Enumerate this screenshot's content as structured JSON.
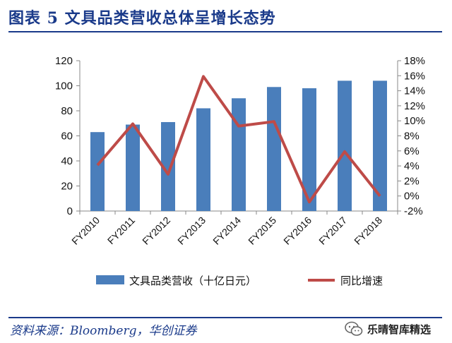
{
  "header": {
    "title": "图表 5  文具品类营收总体呈增长态势"
  },
  "footer": {
    "source": "资料来源：Bloomberg，华创证券",
    "watermark": "乐晴智库精选",
    "watermark_icon": "wechat-icon"
  },
  "colors": {
    "title": "#1a3a8a",
    "bar": "#4a7ebb",
    "line": "#be4b48",
    "axis": "#888888"
  },
  "chart_data": {
    "type": "bar+line",
    "title": "文具品类营收总体呈增长态势",
    "categories": [
      "FY2010",
      "FY2011",
      "FY2012",
      "FY2013",
      "FY2014",
      "FY2015",
      "FY2016",
      "FY2017",
      "FY2018"
    ],
    "series": [
      {
        "name": "文具品类营收（十亿日元）",
        "type": "bar",
        "axis": "left",
        "values": [
          63,
          69,
          71,
          82,
          90,
          99,
          98,
          104,
          104
        ]
      },
      {
        "name": "同比增速",
        "type": "line",
        "axis": "right",
        "values": [
          4.1,
          9.6,
          2.9,
          15.9,
          9.3,
          9.9,
          -0.8,
          5.9,
          0.0
        ]
      }
    ],
    "left_axis": {
      "min": 0,
      "max": 120,
      "ticks": [
        "0",
        "20",
        "40",
        "60",
        "80",
        "100",
        "120"
      ]
    },
    "right_axis": {
      "min": -2,
      "max": 18,
      "ticks": [
        "-2%",
        "0%",
        "2%",
        "4%",
        "6%",
        "8%",
        "10%",
        "12%",
        "14%",
        "16%",
        "18%"
      ]
    },
    "legend_position": "bottom",
    "grid": false
  }
}
